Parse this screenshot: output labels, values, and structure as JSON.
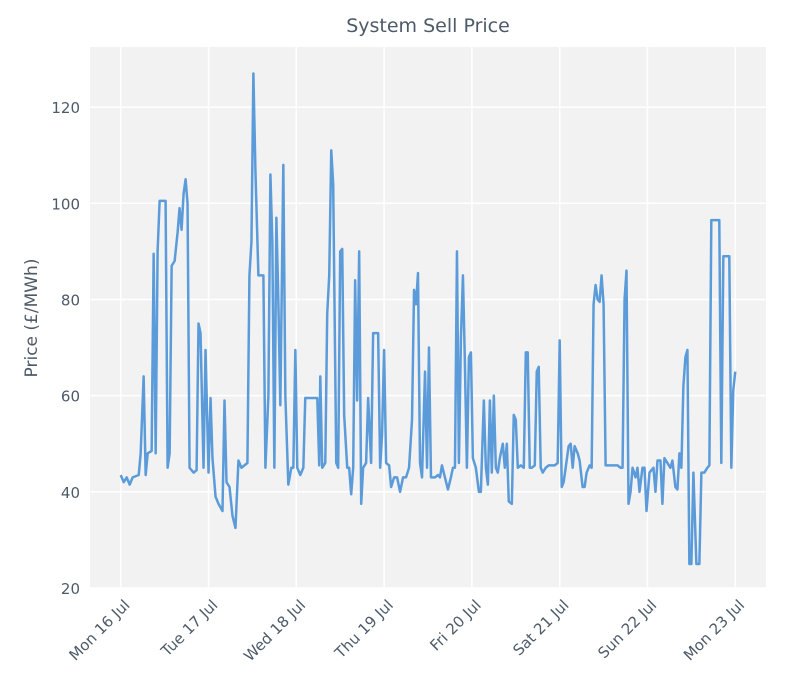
{
  "chart_data": {
    "type": "line",
    "title": "System Sell Price",
    "ylabel": "Price (£/MWh)",
    "color": "#5b9bd9",
    "grid": true,
    "xlim": [
      -0.35,
      7.35
    ],
    "ylim": [
      20,
      132.5
    ],
    "yticks": [
      20,
      40,
      60,
      80,
      100,
      120
    ],
    "xticks": [
      {
        "value": 0,
        "label": "Mon 16 Jul"
      },
      {
        "value": 1,
        "label": "Tue 17 Jul"
      },
      {
        "value": 2,
        "label": "Wed 18 Jul"
      },
      {
        "value": 3,
        "label": "Thu 19 Jul"
      },
      {
        "value": 4,
        "label": "Fri 20 Jul"
      },
      {
        "value": 5,
        "label": "Sat 21 Jul"
      },
      {
        "value": 6,
        "label": "Sun 22 Jul"
      },
      {
        "value": 7,
        "label": "Mon 23 Jul"
      }
    ],
    "x": [
      0,
      0.034,
      0.068,
      0.102,
      0.136,
      0.205,
      0.227,
      0.261,
      0.284,
      0.307,
      0.352,
      0.375,
      0.398,
      0.42,
      0.443,
      0.511,
      0.534,
      0.557,
      0.58,
      0.614,
      0.648,
      0.67,
      0.693,
      0.716,
      0.739,
      0.761,
      0.784,
      0.83,
      0.864,
      0.886,
      0.909,
      0.943,
      0.966,
      1.0,
      1.023,
      1.045,
      1.08,
      1.114,
      1.159,
      1.182,
      1.205,
      1.239,
      1.273,
      1.307,
      1.341,
      1.375,
      1.409,
      1.443,
      1.466,
      1.489,
      1.511,
      1.534,
      1.568,
      1.625,
      1.648,
      1.682,
      1.705,
      1.727,
      1.75,
      1.773,
      1.795,
      1.818,
      1.852,
      1.875,
      1.909,
      1.943,
      1.966,
      1.989,
      2.011,
      2.045,
      2.08,
      2.102,
      2.239,
      2.261,
      2.273,
      2.295,
      2.33,
      2.352,
      2.375,
      2.398,
      2.42,
      2.455,
      2.477,
      2.5,
      2.523,
      2.545,
      2.58,
      2.602,
      2.625,
      2.648,
      2.67,
      2.693,
      2.716,
      2.739,
      2.761,
      2.795,
      2.818,
      2.852,
      2.875,
      2.932,
      2.955,
      2.977,
      3.0,
      3.023,
      3.057,
      3.08,
      3.114,
      3.148,
      3.182,
      3.216,
      3.25,
      3.284,
      3.318,
      3.341,
      3.364,
      3.386,
      3.409,
      3.432,
      3.466,
      3.489,
      3.511,
      3.534,
      3.58,
      3.614,
      3.636,
      3.659,
      3.693,
      3.727,
      3.761,
      3.784,
      3.807,
      3.83,
      3.852,
      3.875,
      3.898,
      3.92,
      3.943,
      3.966,
      3.989,
      4.011,
      4.045,
      4.08,
      4.102,
      4.136,
      4.159,
      4.182,
      4.205,
      4.227,
      4.25,
      4.273,
      4.295,
      4.318,
      4.352,
      4.375,
      4.398,
      4.42,
      4.455,
      4.477,
      4.5,
      4.523,
      4.557,
      4.591,
      4.614,
      4.636,
      4.659,
      4.682,
      4.716,
      4.739,
      4.761,
      4.784,
      4.807,
      4.841,
      4.875,
      4.909,
      4.943,
      4.977,
      5.0,
      5.023,
      5.045,
      5.068,
      5.102,
      5.125,
      5.148,
      5.17,
      5.205,
      5.227,
      5.261,
      5.284,
      5.307,
      5.341,
      5.364,
      5.386,
      5.409,
      5.432,
      5.455,
      5.477,
      5.5,
      5.523,
      5.557,
      5.591,
      5.625,
      5.659,
      5.693,
      5.716,
      5.739,
      5.761,
      5.784,
      5.807,
      5.83,
      5.864,
      5.886,
      5.909,
      5.943,
      5.966,
      5.989,
      6.023,
      6.045,
      6.068,
      6.091,
      6.114,
      6.148,
      6.17,
      6.193,
      6.227,
      6.261,
      6.284,
      6.318,
      6.341,
      6.364,
      6.386,
      6.409,
      6.432,
      6.455,
      6.477,
      6.5,
      6.523,
      6.557,
      6.591,
      6.614,
      6.648,
      6.682,
      6.705,
      6.727,
      6.818,
      6.841,
      6.864,
      6.932,
      6.955,
      6.977,
      7.0
    ],
    "values": [
      43.5,
      42,
      43,
      41.5,
      43,
      43.5,
      48,
      64,
      43.5,
      48,
      48.5,
      89.5,
      48,
      90,
      100.5,
      100.5,
      45,
      48,
      87,
      88,
      94,
      99,
      94.5,
      102,
      105,
      100,
      45,
      44,
      44.5,
      75,
      73,
      45,
      69.5,
      44,
      59.5,
      47,
      39,
      37.5,
      36,
      59,
      42,
      41,
      35,
      32.5,
      46.5,
      45,
      45.5,
      46,
      85,
      92,
      127,
      107,
      85,
      85,
      45,
      60,
      106,
      92,
      45,
      97,
      80,
      58,
      108,
      60,
      41.5,
      45,
      45,
      69.5,
      45,
      43.5,
      45,
      59.5,
      59.5,
      45.5,
      64,
      45,
      46,
      77,
      85,
      111,
      104,
      46,
      45,
      90,
      90.5,
      56,
      45,
      45,
      39.5,
      45,
      84,
      59,
      90,
      37.5,
      45,
      46,
      59.5,
      46,
      73,
      73,
      45,
      52,
      69.5,
      46,
      45.5,
      41,
      43,
      43,
      40,
      43,
      43,
      45,
      55,
      82,
      79,
      85.5,
      46,
      43,
      65,
      45,
      70,
      43,
      43,
      43.5,
      43,
      45.5,
      43,
      40.5,
      43,
      45,
      45,
      90,
      46,
      72,
      85,
      67,
      45,
      68,
      69,
      47,
      45,
      40,
      40,
      59,
      45,
      41.5,
      59,
      44,
      60,
      45,
      44,
      47,
      50,
      45,
      50,
      38,
      37.5,
      56,
      55,
      45,
      45.5,
      45,
      69,
      69,
      45,
      45,
      45.5,
      65,
      66,
      45,
      44,
      45,
      45.5,
      45.5,
      45.5,
      46,
      71.5,
      41,
      42,
      45,
      49.5,
      50,
      45,
      49.5,
      48,
      46.5,
      41,
      41,
      44,
      45.5,
      45,
      79,
      83,
      80,
      79.5,
      85,
      79,
      45.5,
      45.5,
      45.5,
      45.5,
      45.5,
      45,
      45,
      80,
      86,
      37.5,
      40,
      45,
      43,
      45,
      40,
      45,
      45,
      36,
      44,
      44.5,
      45,
      40,
      46.5,
      46.5,
      37.5,
      47,
      46,
      45,
      46.5,
      41,
      40.5,
      48,
      45,
      62,
      68,
      69.5,
      25,
      25,
      44,
      25,
      25,
      44,
      44,
      45,
      45.5,
      96.5,
      96.5,
      46,
      89,
      89,
      45,
      61,
      65
    ]
  }
}
